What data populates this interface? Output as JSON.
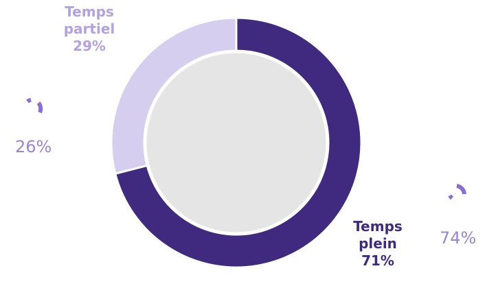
{
  "chart_data": {
    "type": "pie",
    "style": "donut",
    "categories": [
      "Temps plein",
      "Temps partiel"
    ],
    "values": [
      71,
      29
    ],
    "value_labels": [
      "71%",
      "29%"
    ],
    "colors": [
      "#3f2a7f",
      "#d6ceee"
    ],
    "center_color": "#e6e5e6",
    "side_indicators": [
      {
        "value": "26%",
        "color": "#8a6fd0"
      },
      {
        "value": "74%",
        "color": "#8a6fd0"
      }
    ]
  },
  "labels": {
    "partiel_line1": "Temps",
    "partiel_line2": "partiel",
    "partiel_pct": "29%",
    "plein_line1": "Temps",
    "plein_line2": "plein",
    "plein_pct": "71%",
    "left_pct": "26%",
    "right_pct": "74%"
  },
  "colors": {
    "partiel_label": "#b3a1e3",
    "plein_label": "#3f2a7f"
  }
}
